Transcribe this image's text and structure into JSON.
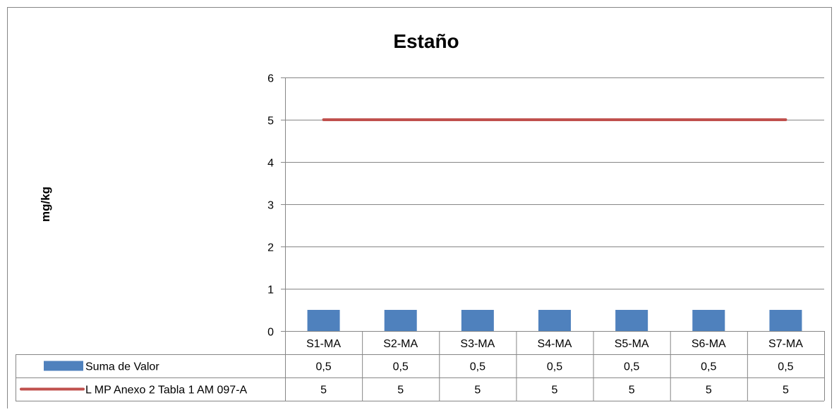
{
  "chart_data": {
    "type": "bar",
    "title": "Estaño",
    "ylabel": "mg/kg",
    "xlabel": "",
    "ylim": [
      0,
      6
    ],
    "yticks": [
      0,
      1,
      2,
      3,
      4,
      5,
      6
    ],
    "grid": true,
    "legend": "data-table-below",
    "categories": [
      "S1-MA",
      "S2-MA",
      "S3-MA",
      "S4-MA",
      "S5-MA",
      "S6-MA",
      "S7-MA"
    ],
    "series": [
      {
        "name": "Suma de Valor",
        "kind": "bar",
        "color": "#4f81bd",
        "values": [
          0.5,
          0.5,
          0.5,
          0.5,
          0.5,
          0.5,
          0.5
        ],
        "labels": [
          "0,5",
          "0,5",
          "0,5",
          "0,5",
          "0,5",
          "0,5",
          "0,5"
        ]
      },
      {
        "name": "L MP Anexo 2 Tabla 1 AM 097-A",
        "kind": "line",
        "color": "#c0504d",
        "values": [
          5,
          5,
          5,
          5,
          5,
          5,
          5
        ],
        "labels": [
          "5",
          "5",
          "5",
          "5",
          "5",
          "5",
          "5"
        ]
      }
    ]
  }
}
